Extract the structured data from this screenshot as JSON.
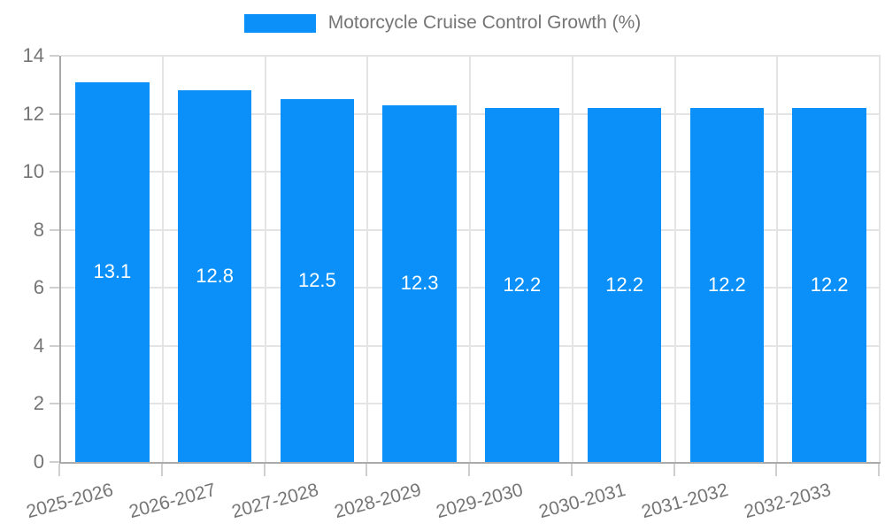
{
  "colors": {
    "bar": "#0A90F8",
    "bar_label_text": "#FFFFFF",
    "axis_text": "#757575",
    "grid_line": "#E4E4E4",
    "axis_line": "#A8A8A8",
    "background": "#FFFFFF"
  },
  "legend": {
    "swatch_icon": "series-color-swatch"
  },
  "chart_data": {
    "type": "bar",
    "title": "Motorcycle Cruise Control Growth (%)",
    "categories": [
      "2025-2026",
      "2026-2027",
      "2027-2028",
      "2028-2029",
      "2029-2030",
      "2030-2031",
      "2031-2032",
      "2032-2033"
    ],
    "values": [
      13.1,
      12.8,
      12.5,
      12.3,
      12.2,
      12.2,
      12.2,
      12.2
    ],
    "bar_labels": [
      "13.1",
      "12.8",
      "12.5",
      "12.3",
      "12.2",
      "12.2",
      "12.2",
      "12.2"
    ],
    "xlabel": "",
    "ylabel": "",
    "ylim": [
      0,
      14
    ],
    "yticks": [
      0,
      2,
      4,
      6,
      8,
      10,
      12,
      14
    ],
    "grid": true,
    "legend_position": "top-center",
    "x_label_rotation_deg": -15,
    "bar_label_position": "center-inside"
  }
}
